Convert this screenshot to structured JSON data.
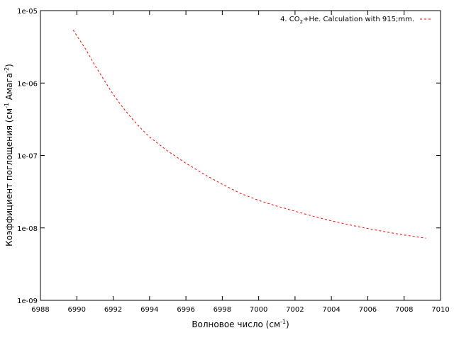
{
  "chart_data": {
    "type": "line",
    "title": "",
    "xlabel_main": "Волновое число (см",
    "xlabel_sup": "-1",
    "xlabel_end": ")",
    "ylabel_main": "Коэффициент поглощения (см",
    "ylabel_sup1": "-1",
    "ylabel_mid": " Амага",
    "ylabel_sup2": "-2",
    "ylabel_end": ")",
    "xlim": [
      6988,
      7010
    ],
    "ylim": [
      1e-09,
      1e-05
    ],
    "yscale": "log",
    "x_ticks": [
      "6988",
      "6990",
      "6992",
      "6994",
      "6996",
      "6998",
      "7000",
      "7002",
      "7004",
      "7006",
      "7008",
      "7010"
    ],
    "y_ticks": [
      "1e-09",
      "1e-08",
      "1e-07",
      "1e-06",
      "1e-05"
    ],
    "grid": false,
    "legend_position": "top-right",
    "series": [
      {
        "legend_prefix": "4. CO",
        "legend_sub": "2",
        "legend_suffix": "+He. Calculation with   915;mm.",
        "color": "#ff0000",
        "line_style": "dashed",
        "x": [
          6989.8,
          6990.5,
          6991.0,
          6991.5,
          6992.0,
          6992.5,
          6993.0,
          6993.5,
          6994.0,
          6995.0,
          6996.0,
          6997.0,
          6998.0,
          6999.0,
          7000.0,
          7001.0,
          7002.0,
          7003.0,
          7004.0,
          7005.0,
          7006.0,
          7007.0,
          7008.0,
          7009.2
        ],
        "y": [
          5.4e-06,
          2.9e-06,
          1.75e-06,
          1.1e-06,
          7e-07,
          4.7e-07,
          3.3e-07,
          2.4e-07,
          1.8e-07,
          1.15e-07,
          7.8e-08,
          5.5e-08,
          4e-08,
          3e-08,
          2.4e-08,
          2e-08,
          1.7e-08,
          1.45e-08,
          1.25e-08,
          1.1e-08,
          9.8e-09,
          8.8e-09,
          8e-09,
          7.2e-09
        ]
      }
    ]
  }
}
